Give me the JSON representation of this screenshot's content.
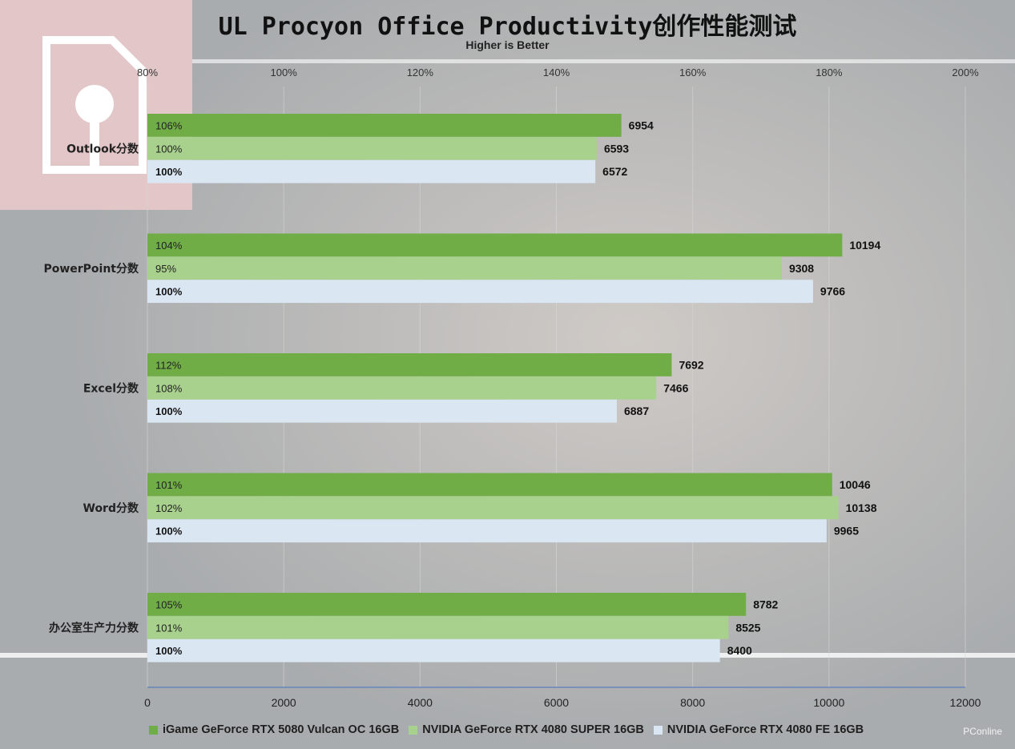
{
  "title": "UL Procyon Office Productivity创作性能测试",
  "subtitle": "Higher is Better",
  "watermark": "PConline",
  "colors": {
    "series1": "#70ad47",
    "series2": "#a9d18e",
    "series3": "#dae6f2"
  },
  "chart_data": {
    "type": "bar",
    "orientation": "horizontal",
    "categories": [
      "Outlook分数",
      "PowerPoint分数",
      "Excel分数",
      "Word分数",
      "办公室生产力分数"
    ],
    "series": [
      {
        "name": "iGame GeForce RTX 5080 Vulcan OC 16GB",
        "values": [
          6954,
          10194,
          7692,
          10046,
          8782
        ],
        "percent_labels": [
          "106%",
          "104%",
          "112%",
          "101%",
          "105%"
        ]
      },
      {
        "name": "NVIDIA GeForce RTX 4080 SUPER 16GB",
        "values": [
          6593,
          9308,
          7466,
          10138,
          8525
        ],
        "percent_labels": [
          "100%",
          "95%",
          "108%",
          "102%",
          "101%"
        ]
      },
      {
        "name": "NVIDIA GeForce RTX 4080 FE 16GB",
        "values": [
          6572,
          9766,
          6887,
          9965,
          8400
        ],
        "percent_labels": [
          "100%",
          "100%",
          "100%",
          "100%",
          "100%"
        ]
      }
    ],
    "x_primary": {
      "range": [
        0,
        12000
      ],
      "ticks": [
        "0",
        "2000",
        "4000",
        "6000",
        "8000",
        "10000",
        "12000"
      ]
    },
    "x_secondary": {
      "range": [
        0.8,
        2.0
      ],
      "ticks": [
        "80%",
        "100%",
        "120%",
        "140%",
        "160%",
        "180%",
        "200%"
      ]
    },
    "legend_position": "bottom",
    "grid": true
  }
}
